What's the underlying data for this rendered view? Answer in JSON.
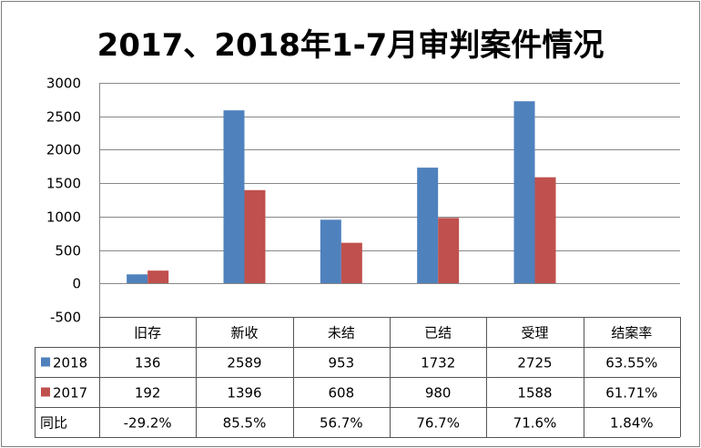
{
  "chart_data": {
    "type": "bar",
    "title": "2017、2018年1-7月审判案件情况",
    "categories": [
      "旧存",
      "新收",
      "未结",
      "已结",
      "受理"
    ],
    "extra_column_label": "结案率",
    "series": [
      {
        "name": "2018",
        "color": "#4F81BD",
        "values": [
          136,
          2589,
          953,
          1732,
          2725
        ],
        "table_values": [
          "136",
          "2589",
          "953",
          "1732",
          "2725",
          "63.55%"
        ]
      },
      {
        "name": "2017",
        "color": "#C0504D",
        "values": [
          192,
          1396,
          608,
          980,
          1588
        ],
        "table_values": [
          "192",
          "1396",
          "608",
          "980",
          "1588",
          "61.71%"
        ]
      }
    ],
    "extra_row": {
      "name": "同比",
      "values": [
        "-29.2%",
        "85.5%",
        "56.7%",
        "76.7%",
        "71.6%",
        "1.84%"
      ]
    },
    "ylim": [
      -500,
      3000
    ],
    "yticks": [
      3000,
      2500,
      2000,
      1500,
      1000,
      500,
      0,
      -500
    ],
    "grid": true,
    "legend": "in data table",
    "xlabel": "",
    "ylabel": ""
  }
}
